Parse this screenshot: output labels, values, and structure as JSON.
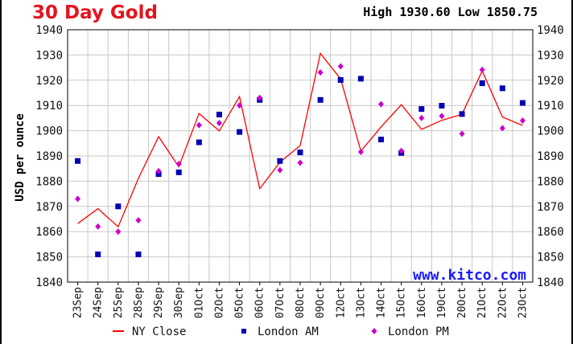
{
  "header": {
    "title": "30 Day Gold",
    "high_label": "High",
    "high_value": "1930.60",
    "low_label": "Low",
    "low_value": "1850.75"
  },
  "watermark": "www.kitco.com",
  "colors": {
    "title": "#e3141e",
    "ny_close": "#ff0000",
    "london_am": "#0000b4",
    "london_pm": "#cc00cc",
    "watermark": "#1a1aff",
    "grid": "#c8c8c8"
  },
  "chart_data": {
    "type": "line",
    "title": "30 Day Gold",
    "ylabel": "USD per ounce",
    "xlabel": "",
    "ylim": [
      1840,
      1940
    ],
    "yticks": [
      1840,
      1850,
      1860,
      1870,
      1880,
      1890,
      1900,
      1910,
      1920,
      1930,
      1940
    ],
    "grid": true,
    "legend_position": "bottom",
    "categories": [
      "23Sep",
      "24Sep",
      "25Sep",
      "28Sep",
      "29Sep",
      "30Sep",
      "01Oct",
      "02Oct",
      "05Oct",
      "06Oct",
      "07Oct",
      "08Oct",
      "09Oct",
      "12Oct",
      "13Oct",
      "14Oct",
      "15Oct",
      "16Oct",
      "19Oct",
      "20Oct",
      "21Oct",
      "22Oct",
      "23Oct"
    ],
    "series": [
      {
        "name": "NY Close",
        "style": "line",
        "values": [
          1863.2,
          1869.1,
          1861.9,
          1881.1,
          1897.6,
          1885.7,
          1906.8,
          1899.9,
          1913.5,
          1877.0,
          1887.5,
          1894.1,
          1930.6,
          1920.5,
          1891.9,
          1901.5,
          1910.3,
          1900.5,
          1904.1,
          1906.5,
          1923.7,
          1905.4,
          1902.1
        ]
      },
      {
        "name": "London AM",
        "style": "square",
        "values": [
          1888.0,
          1851.0,
          1870.0,
          1851.0,
          1882.8,
          1883.5,
          1895.4,
          1906.4,
          1899.5,
          1912.2,
          1888.0,
          1891.4,
          1912.2,
          1920.1,
          1920.6,
          1896.5,
          1891.2,
          1908.6,
          1909.9,
          1906.6,
          1918.8,
          1916.8,
          1911.0
        ]
      },
      {
        "name": "London PM",
        "style": "diamond",
        "values": [
          1873.0,
          1862.0,
          1860.0,
          1864.5,
          1884.0,
          1886.8,
          1902.2,
          1903.0,
          1910.0,
          1913.0,
          1884.4,
          1887.3,
          1923.1,
          1925.5,
          1891.6,
          1910.5,
          1892.0,
          1905.0,
          1905.8,
          1898.8,
          1924.1,
          1901.0,
          1904.0
        ]
      }
    ]
  }
}
